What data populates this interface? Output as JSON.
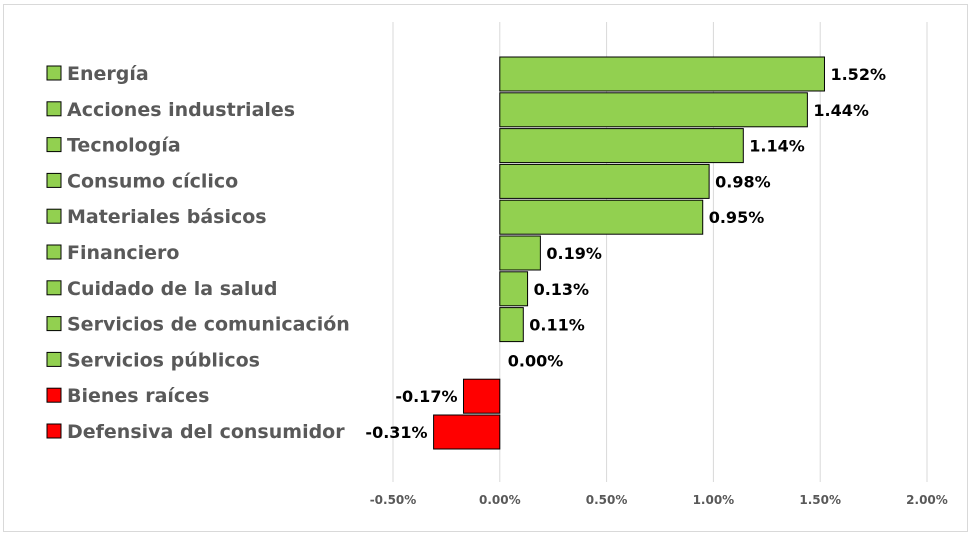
{
  "chart_data": {
    "type": "bar",
    "orientation": "horizontal",
    "categories": [
      "Energía",
      "Acciones industriales",
      "Tecnología",
      "Consumo cíclico",
      "Materiales básicos",
      "Financiero",
      "Cuidado de la salud",
      "Servicios de comunicación",
      "Servicios públicos",
      "Bienes raíces",
      "Defensiva del consumidor"
    ],
    "values": [
      1.52,
      1.44,
      1.14,
      0.98,
      0.95,
      0.19,
      0.13,
      0.11,
      0.0,
      -0.17,
      -0.31
    ],
    "value_labels": [
      "1.52%",
      "1.44%",
      "1.14%",
      "0.98%",
      "0.95%",
      "0.19%",
      "0.13%",
      "0.11%",
      "0.00%",
      "-0.17%",
      "-0.31%"
    ],
    "xlim": [
      -0.5,
      2.0
    ],
    "xticks": [
      -0.5,
      0.0,
      0.5,
      1.0,
      1.5,
      2.0
    ],
    "xtick_labels": [
      "-0.50%",
      "0.00%",
      "0.50%",
      "1.00%",
      "1.50%",
      "2.00%"
    ],
    "grid": "vertical",
    "legend": "left",
    "colors": {
      "positive": "#92d050",
      "negative": "#ff0000",
      "border": "#000000",
      "grid": "#d9d9d9"
    },
    "title": "",
    "xlabel": "",
    "ylabel": ""
  }
}
